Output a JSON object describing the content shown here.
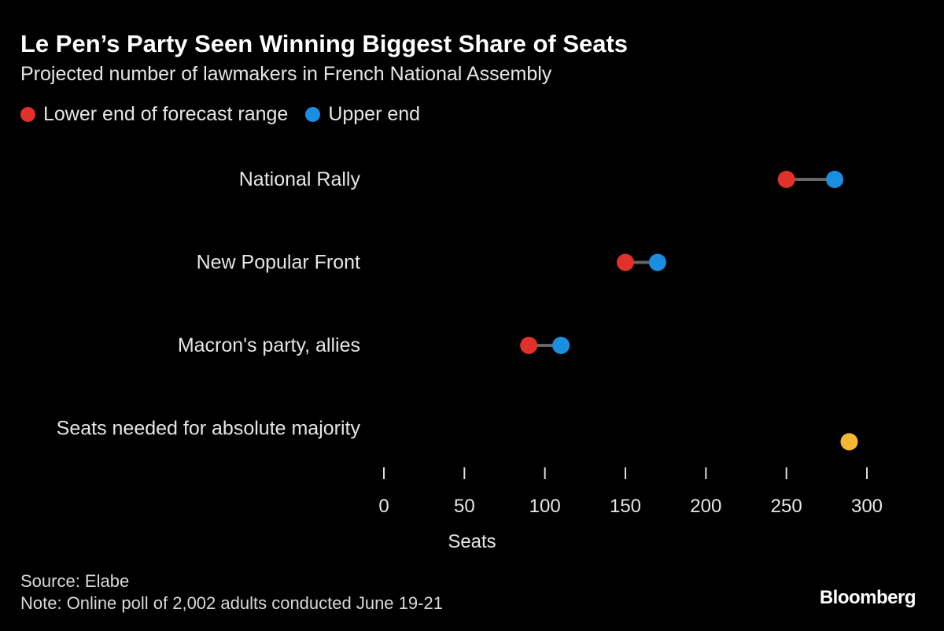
{
  "title": "Le Pen’s Party Seen Winning Biggest Share of Seats",
  "subtitle": "Projected number of lawmakers in French National Assembly",
  "colors": {
    "lower": "#e0312b",
    "upper": "#1a8fe0",
    "majority": "#f5b731",
    "connector": "#666666"
  },
  "chart_data": {
    "type": "dumbbell",
    "legend": [
      {
        "name": "Lower end of forecast range",
        "color": "#e0312b"
      },
      {
        "name": "Upper end",
        "color": "#1a8fe0"
      }
    ],
    "legend_placement": "top-left",
    "categories": [
      "National Rally",
      "New Popular Front",
      "Macron's party, allies",
      "Seats needed for absolute majority"
    ],
    "series": [
      {
        "name": "Lower end of forecast range",
        "values": [
          250,
          150,
          90,
          null
        ]
      },
      {
        "name": "Upper end",
        "values": [
          280,
          170,
          110,
          null
        ]
      }
    ],
    "majority": {
      "label": "Seats needed for absolute majority",
      "value": 289
    },
    "xlabel": "Seats",
    "xlim": [
      0,
      300
    ],
    "xticks": [
      0,
      50,
      100,
      150,
      200,
      250,
      300
    ],
    "grid": false
  },
  "footer": {
    "source": "Source: Elabe",
    "note": "Note: Online poll of 2,002 adults conducted June 19-21",
    "logo": "Bloomberg"
  }
}
